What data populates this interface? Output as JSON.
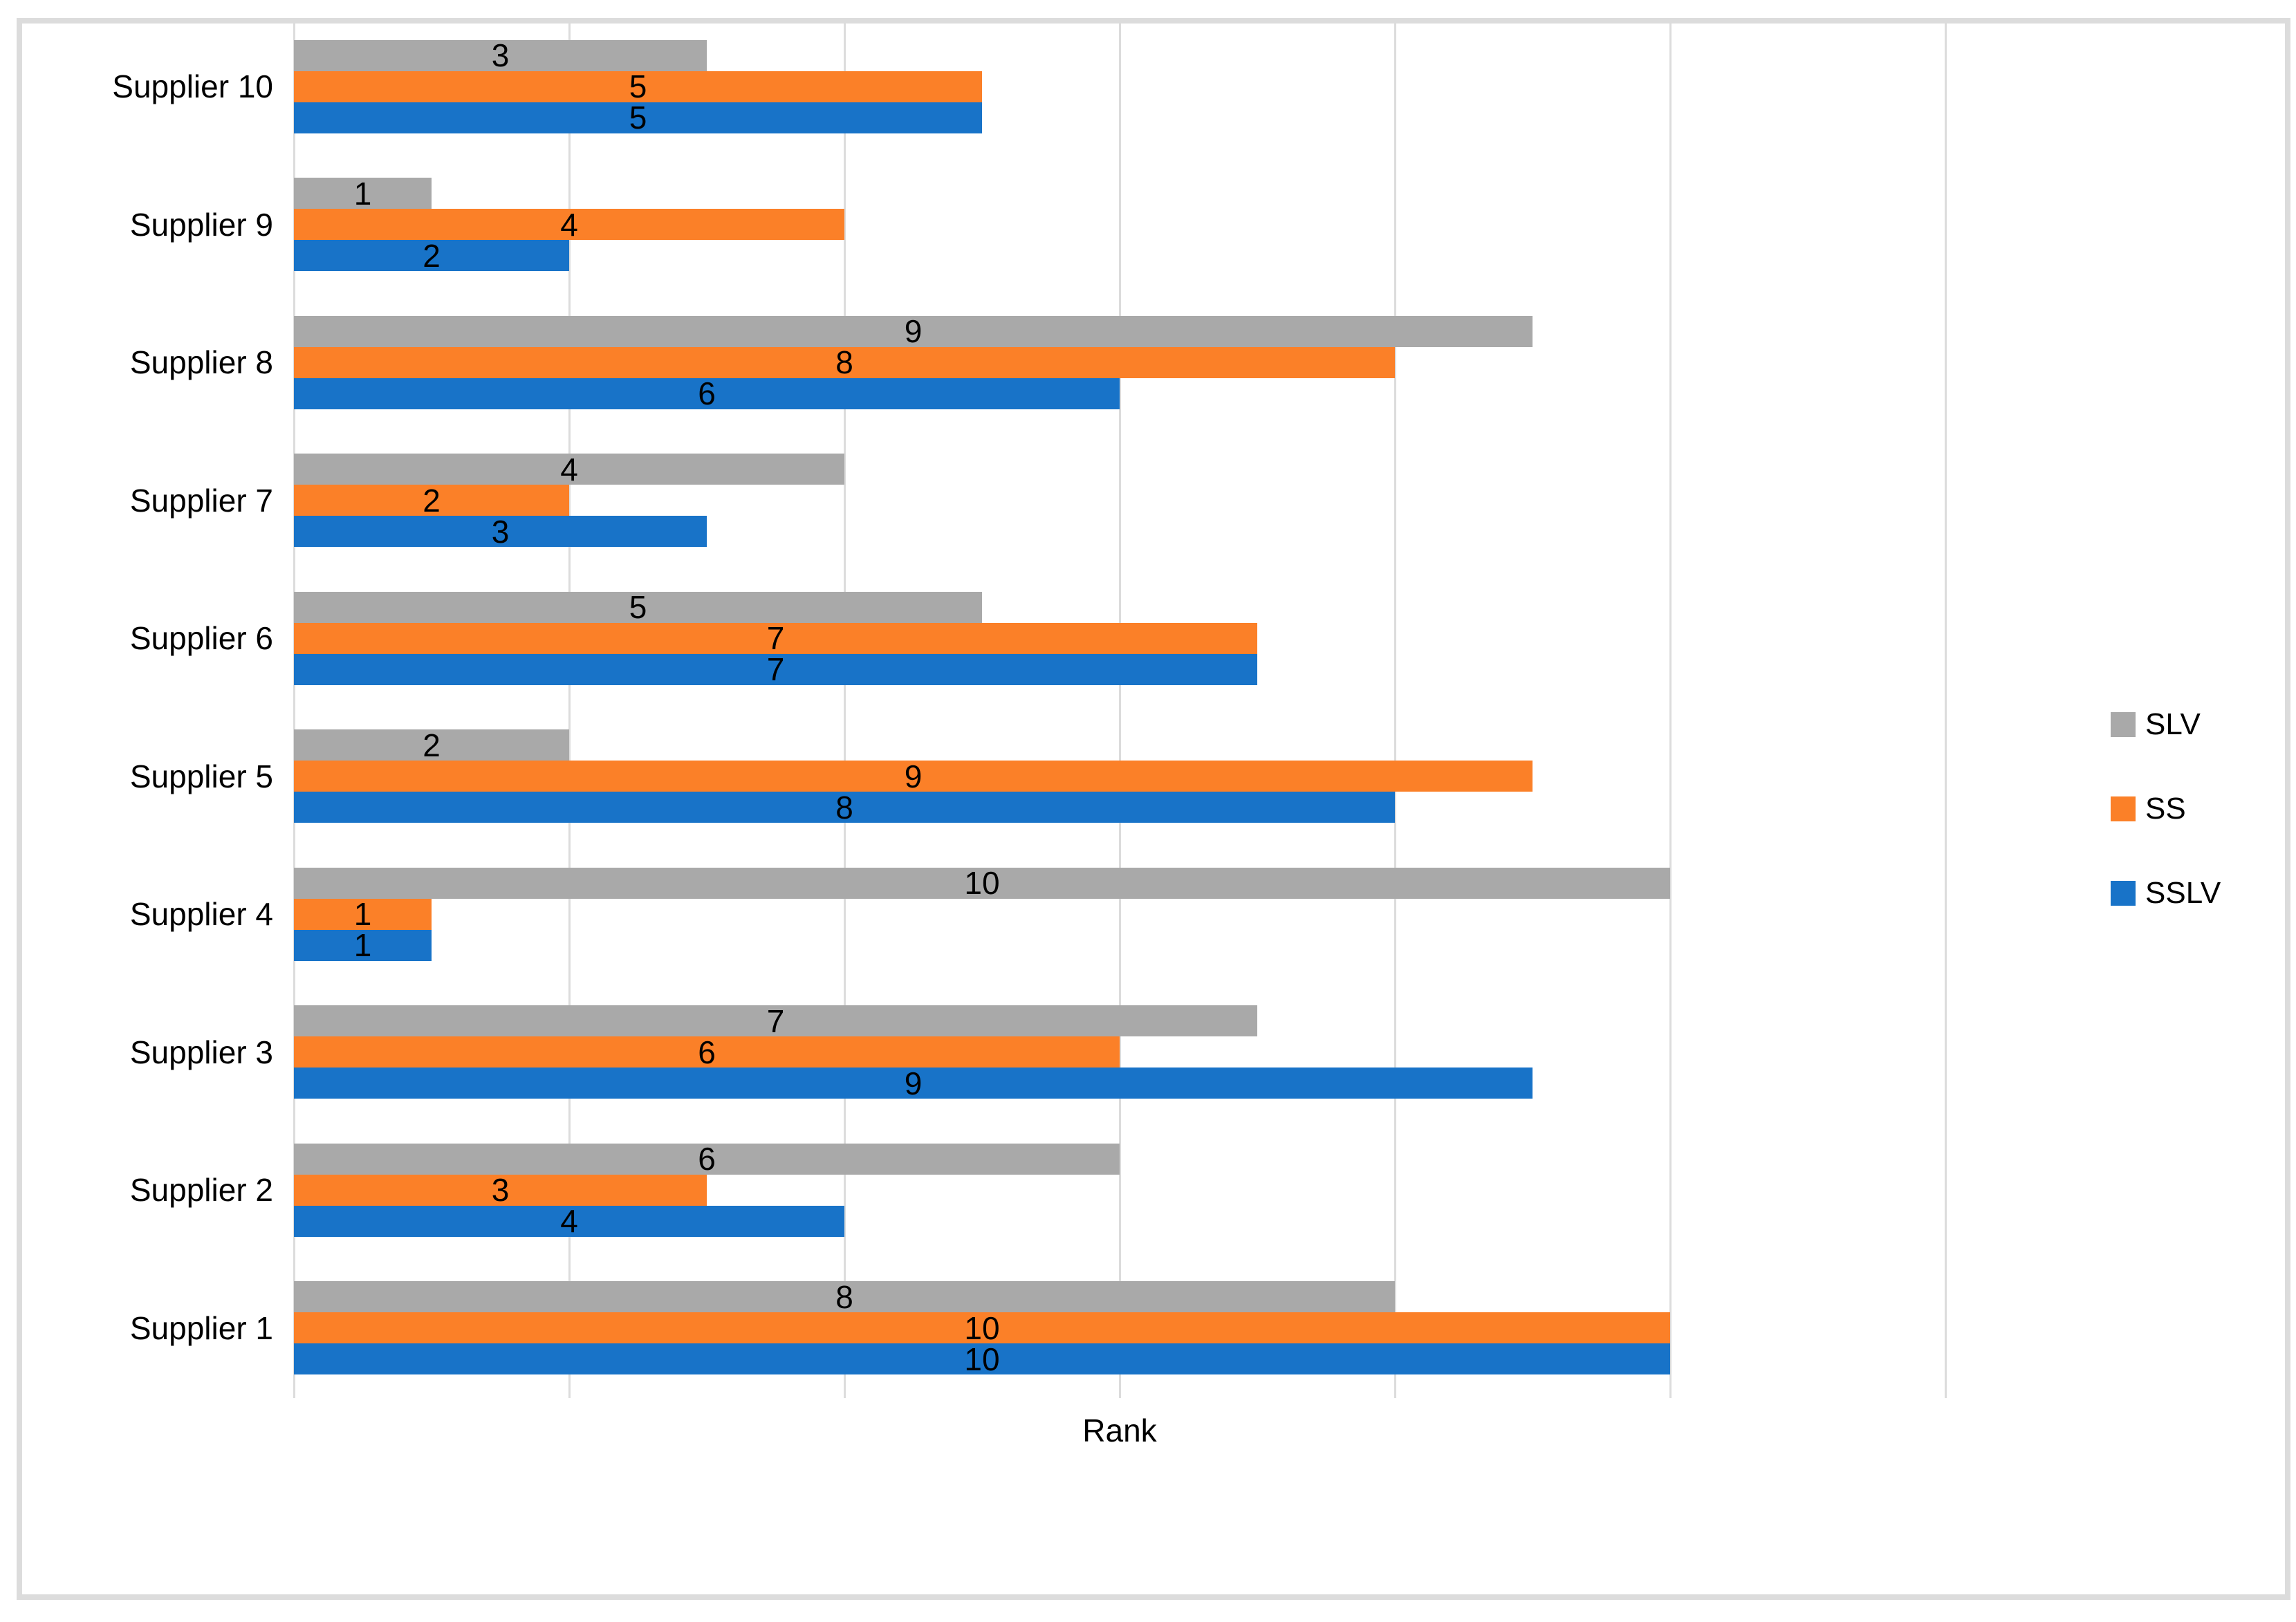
{
  "chart_data": {
    "type": "bar",
    "orientation": "horizontal",
    "title": "",
    "xlabel": "Rank",
    "ylabel": "",
    "categories": [
      "Supplier 10",
      "Supplier 9",
      "Supplier 8",
      "Supplier 7",
      "Supplier 6",
      "Supplier 5",
      "Supplier 4",
      "Supplier 3",
      "Supplier 2",
      "Supplier 1"
    ],
    "series": [
      {
        "name": "SLV",
        "color": "#A9A9A9",
        "values": [
          3,
          1,
          9,
          4,
          5,
          2,
          10,
          7,
          6,
          8
        ]
      },
      {
        "name": "SS",
        "color": "#FB8028",
        "values": [
          5,
          4,
          8,
          2,
          7,
          9,
          1,
          6,
          3,
          10
        ]
      },
      {
        "name": "SSLV",
        "color": "#1873C8",
        "values": [
          5,
          2,
          6,
          3,
          7,
          8,
          1,
          9,
          4,
          10
        ]
      }
    ],
    "xlim": [
      0,
      12
    ],
    "grid_interval": 2,
    "grid_on": true,
    "axis_tick_labels_visible": false,
    "data_labels": "center",
    "legend_position": "right",
    "colors": {
      "gridline": "#DCDCDC",
      "chart_border": "#DCDCDC",
      "text": "#000000",
      "background": "#FFFFFF"
    }
  }
}
